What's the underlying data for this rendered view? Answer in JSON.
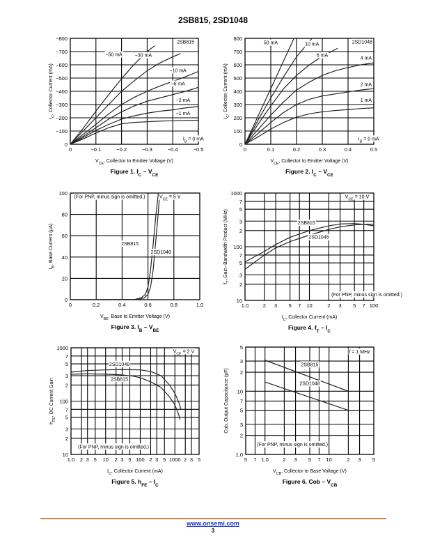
{
  "header": {
    "title": "2SB815, 2SD1048"
  },
  "footer": {
    "link": "www.onsemi.com",
    "page_number": "3",
    "rule_color": "#d4803f"
  },
  "chart_data": [
    {
      "id": "fig1",
      "type": "line",
      "caption": "Figure 1. I_C – V_CE",
      "caption_parts": [
        "Figure 1. I",
        "C",
        " – V",
        "CE"
      ],
      "xlabel_parts": [
        "V",
        "CE",
        ", Collector to Emitter Voltage (V)"
      ],
      "ylabel_parts": [
        "I",
        "C",
        ", Collector Current (mA)"
      ],
      "xscale": "linear",
      "yscale": "linear",
      "xlim": [
        0,
        -0.5
      ],
      "ylim": [
        0,
        -800
      ],
      "xticks": [
        0,
        -0.1,
        -0.2,
        -0.3,
        -0.4,
        -0.5
      ],
      "xtick_labels": [
        "0",
        "−0.1",
        "−0.2",
        "−0.3",
        "−0.4",
        "−0.5"
      ],
      "yticks": [
        0,
        -100,
        -200,
        -300,
        -400,
        -500,
        -600,
        -700,
        -800
      ],
      "ytick_labels": [
        "0",
        "−100",
        "−200",
        "−300",
        "−400",
        "−500",
        "−600",
        "−700",
        "−800"
      ],
      "grid": true,
      "annotations": [
        {
          "text": "2SB815",
          "x": -0.45,
          "y": -760
        },
        {
          "text": "I_B = 0 mA",
          "x": -0.44,
          "y": -30
        }
      ],
      "series": [
        {
          "name": "−50 mA",
          "label_at": [
            -0.17,
            -665
          ],
          "x": [
            0,
            -0.05,
            -0.1,
            -0.15,
            -0.2,
            -0.25,
            -0.3,
            -0.33
          ],
          "y": [
            0,
            -120,
            -250,
            -375,
            -495,
            -605,
            -700,
            -745
          ]
        },
        {
          "name": "−30 mA",
          "label_at": [
            -0.285,
            -660
          ],
          "x": [
            0,
            -0.05,
            -0.1,
            -0.15,
            -0.2,
            -0.25,
            -0.3,
            -0.35,
            -0.4,
            -0.43
          ],
          "y": [
            0,
            -100,
            -200,
            -300,
            -400,
            -480,
            -555,
            -615,
            -660,
            -685
          ]
        },
        {
          "name": "−10 mA",
          "label_at": [
            -0.42,
            -545
          ],
          "x": [
            0,
            -0.05,
            -0.1,
            -0.15,
            -0.2,
            -0.25,
            -0.3,
            -0.35,
            -0.4,
            -0.45,
            -0.5
          ],
          "y": [
            0,
            -75,
            -150,
            -230,
            -300,
            -355,
            -400,
            -440,
            -475,
            -510,
            -550
          ]
        },
        {
          "name": "−6 mA",
          "label_at": [
            -0.42,
            -445
          ],
          "x": [
            0,
            -0.05,
            -0.1,
            -0.15,
            -0.2,
            -0.25,
            -0.3,
            -0.35,
            -0.4,
            -0.45,
            -0.5
          ],
          "y": [
            0,
            -60,
            -125,
            -190,
            -245,
            -290,
            -325,
            -350,
            -375,
            -400,
            -430
          ]
        },
        {
          "name": "−2 mA",
          "label_at": [
            -0.44,
            -320
          ],
          "x": [
            0,
            -0.05,
            -0.1,
            -0.15,
            -0.2,
            -0.25,
            -0.3,
            -0.35,
            -0.4,
            -0.45,
            -0.5
          ],
          "y": [
            0,
            -50,
            -105,
            -150,
            -190,
            -215,
            -235,
            -250,
            -260,
            -275,
            -285
          ]
        },
        {
          "name": "−1 mA",
          "label_at": [
            -0.44,
            -220
          ],
          "x": [
            0,
            -0.05,
            -0.1,
            -0.15,
            -0.2,
            -0.25,
            -0.3,
            -0.35,
            -0.4,
            -0.45,
            -0.5
          ],
          "y": [
            0,
            -40,
            -85,
            -125,
            -155,
            -165,
            -170,
            -175,
            -178,
            -180,
            -182
          ]
        }
      ]
    },
    {
      "id": "fig2",
      "type": "line",
      "caption": "Figure 2. I_C – V_CE",
      "caption_parts": [
        "Figure 2. I",
        "C",
        " – V",
        "CE"
      ],
      "xlabel_parts": [
        "V",
        "CE",
        ", Collector to Emitter Voltage (V)"
      ],
      "ylabel_parts": [
        "I",
        "C",
        ", Collector Current (mA)"
      ],
      "xscale": "linear",
      "yscale": "linear",
      "xlim": [
        0,
        0.5
      ],
      "ylim": [
        0,
        800
      ],
      "xticks": [
        0,
        0.1,
        0.2,
        0.3,
        0.4,
        0.5
      ],
      "xtick_labels": [
        "0",
        "0.1",
        "0.2",
        "0.3",
        "0.4",
        "0.5"
      ],
      "yticks": [
        0,
        100,
        200,
        300,
        400,
        500,
        600,
        700,
        800
      ],
      "ytick_labels": [
        "0",
        "100",
        "200",
        "300",
        "400",
        "500",
        "600",
        "700",
        "800"
      ],
      "grid": true,
      "annotations": [
        {
          "text": "2SD1048",
          "x": 0.455,
          "y": 760
        },
        {
          "text": "I_B = 0 mA",
          "x": 0.44,
          "y": 30
        }
      ],
      "series": [
        {
          "name": "50 mA",
          "label_at": [
            0.1,
            755
          ],
          "x": [
            0,
            0.05,
            0.1,
            0.15,
            0.19
          ],
          "y": [
            0,
            210,
            420,
            630,
            800
          ]
        },
        {
          "name": "10 mA",
          "label_at": [
            0.26,
            745
          ],
          "x": [
            0,
            0.05,
            0.1,
            0.15,
            0.2,
            0.26
          ],
          "y": [
            0,
            180,
            350,
            510,
            660,
            800
          ]
        },
        {
          "name": "6 mA",
          "label_at": [
            0.3,
            660
          ],
          "x": [
            0,
            0.05,
            0.1,
            0.15,
            0.2,
            0.25,
            0.3,
            0.36
          ],
          "y": [
            0,
            150,
            290,
            420,
            520,
            600,
            665,
            725
          ]
        },
        {
          "name": "4 mA",
          "label_at": [
            0.47,
            640
          ],
          "x": [
            0,
            0.05,
            0.1,
            0.15,
            0.2,
            0.25,
            0.3,
            0.35,
            0.4,
            0.45,
            0.5
          ],
          "y": [
            0,
            110,
            220,
            320,
            410,
            470,
            520,
            555,
            580,
            600,
            615
          ]
        },
        {
          "name": "2 mA",
          "label_at": [
            0.47,
            440
          ],
          "x": [
            0,
            0.05,
            0.1,
            0.15,
            0.2,
            0.25,
            0.3,
            0.35,
            0.4,
            0.45,
            0.5
          ],
          "y": [
            0,
            80,
            165,
            240,
            300,
            340,
            365,
            380,
            395,
            410,
            420
          ]
        },
        {
          "name": "1 mA",
          "label_at": [
            0.47,
            320
          ],
          "x": [
            0,
            0.05,
            0.1,
            0.15,
            0.2,
            0.25,
            0.3,
            0.35,
            0.4,
            0.45,
            0.5
          ],
          "y": [
            0,
            55,
            115,
            165,
            205,
            230,
            245,
            255,
            262,
            270,
            275
          ]
        }
      ]
    },
    {
      "id": "fig3",
      "type": "line",
      "caption": "Figure 3. I_B – V_BE",
      "caption_parts": [
        "Figure 3. I",
        "B",
        " – V",
        "BE"
      ],
      "xlabel_parts": [
        "V",
        "BE",
        ", Base to Emitter Voltage (V)"
      ],
      "ylabel_parts": [
        "I",
        "B",
        ", Base Current (μA)"
      ],
      "xscale": "linear",
      "yscale": "linear",
      "xlim": [
        0,
        1.0
      ],
      "ylim": [
        0,
        100
      ],
      "xticks": [
        0,
        0.2,
        0.4,
        0.6,
        0.8,
        1.0
      ],
      "xtick_labels": [
        "0",
        "0.2",
        "0.4",
        "0.6",
        "0.8",
        "1.0"
      ],
      "yticks": [
        0,
        20,
        40,
        60,
        80,
        100
      ],
      "ytick_labels": [
        "0",
        "20",
        "40",
        "60",
        "80",
        "100"
      ],
      "grid": true,
      "annotations": [
        {
          "text": "(For PNP, minus sign is omitted.)",
          "x": 0.03,
          "y": 95
        },
        {
          "text": "V_CE = 5 V",
          "x": 0.77,
          "y": 95
        },
        {
          "text": "2SB815",
          "x": 0.46,
          "y": 51
        },
        {
          "text": "2SD1048",
          "x": 0.7,
          "y": 43
        }
      ],
      "series": [
        {
          "name": "2SB815",
          "x": [
            0,
            0.5,
            0.55,
            0.58,
            0.6,
            0.62,
            0.64,
            0.66,
            0.68
          ],
          "y": [
            0,
            0.3,
            2,
            5,
            12,
            28,
            52,
            78,
            100
          ]
        },
        {
          "name": "2SD1048",
          "x": [
            0,
            0.52,
            0.57,
            0.6,
            0.62,
            0.64,
            0.66,
            0.68,
            0.69
          ],
          "y": [
            0,
            0.2,
            1.5,
            5,
            12,
            28,
            55,
            82,
            100
          ]
        }
      ]
    },
    {
      "id": "fig4",
      "type": "line",
      "caption": "Figure 4. f_T – I_C",
      "caption_parts": [
        "Figure 4. f",
        "T",
        " – I",
        "C"
      ],
      "xlabel_parts": [
        "I",
        "C",
        ", Collector Current (mA)"
      ],
      "ylabel_parts": [
        "f",
        "T",
        ", Gain−Bandwidth Product (MHz)"
      ],
      "xscale": "log",
      "yscale": "log",
      "xlim": [
        1,
        100
      ],
      "ylim": [
        10,
        1000
      ],
      "xticks": [
        1,
        2,
        3,
        5,
        7,
        10,
        20,
        30,
        50,
        70,
        100
      ],
      "xtick_labels": [
        "1.0",
        "2",
        "3",
        "5",
        "7",
        "10",
        "2",
        "3",
        "5",
        "7",
        "100"
      ],
      "yticks": [
        10,
        20,
        30,
        50,
        70,
        100,
        200,
        300,
        500,
        700,
        1000
      ],
      "ytick_labels": [
        "10",
        "2",
        "3",
        "5",
        "7",
        "100",
        "2",
        "3",
        "5",
        "7",
        "1000"
      ],
      "grid": true,
      "annotations": [
        {
          "text": "V_CE = 10 V",
          "x": 55,
          "y": 800
        },
        {
          "text": "(For PNP, minus sign is omitted.)",
          "x": 22,
          "y": 12
        },
        {
          "text": "2SB815",
          "x": 9,
          "y": 260
        },
        {
          "text": "2SD1048",
          "x": 14,
          "y": 140
        }
      ],
      "series": [
        {
          "name": "2SB815",
          "x": [
            1,
            2,
            3,
            5,
            10,
            20,
            30,
            50,
            70,
            100
          ],
          "y": [
            52,
            82,
            110,
            150,
            200,
            245,
            265,
            270,
            262,
            245
          ]
        },
        {
          "name": "2SD1048",
          "x": [
            1,
            2,
            3,
            5,
            10,
            20,
            30,
            50,
            70,
            100
          ],
          "y": [
            38,
            70,
            95,
            125,
            165,
            210,
            235,
            255,
            262,
            262
          ]
        }
      ]
    },
    {
      "id": "fig5",
      "type": "line",
      "caption": "Figure 5. h_FE – I_C",
      "caption_parts": [
        "Figure 5. h",
        "FE",
        " – I",
        "C"
      ],
      "xlabel_parts": [
        "I",
        "C",
        ", Collector Current (mA)"
      ],
      "ylabel_parts": [
        "h",
        "FE",
        ", DC Current Gain"
      ],
      "xscale": "log",
      "yscale": "log",
      "xlim": [
        1,
        5000
      ],
      "ylim": [
        10,
        1000
      ],
      "xticks": [
        1,
        2,
        3,
        5,
        10,
        20,
        30,
        50,
        100,
        200,
        300,
        500,
        1000,
        2000,
        3000,
        5000
      ],
      "xtick_labels": [
        "1.0",
        "2",
        "3",
        "5",
        "10",
        "2",
        "3",
        "5",
        "100",
        "2",
        "3",
        "5",
        "1000",
        "2",
        "3",
        "5"
      ],
      "yticks": [
        10,
        20,
        30,
        50,
        70,
        100,
        200,
        300,
        500,
        700,
        1000
      ],
      "ytick_labels": [
        "10",
        "2",
        "3",
        "5",
        "7",
        "100",
        "2",
        "3",
        "5",
        "7",
        "1000"
      ],
      "grid": true,
      "annotations": [
        {
          "text": "V_CE = 2 V",
          "x": 1800,
          "y": 800
        },
        {
          "text": "(For PNP, minus sign is omitted.)",
          "x": 1.6,
          "y": 13
        },
        {
          "text": "2SD1048",
          "x": 25,
          "y": 460
        },
        {
          "text": "2SB815",
          "x": 25,
          "y": 240
        }
      ],
      "series": [
        {
          "name": "2SD1048",
          "x": [
            1,
            3,
            10,
            30,
            100,
            200,
            400,
            700,
            1000,
            1300,
            1500
          ],
          "y": [
            350,
            375,
            385,
            390,
            385,
            360,
            300,
            200,
            140,
            95,
            70
          ]
        },
        {
          "name": "2SB815",
          "x": [
            1,
            3,
            10,
            30,
            60,
            100,
            200,
            400,
            700,
            1000,
            1300,
            1400
          ],
          "y": [
            320,
            325,
            320,
            310,
            295,
            275,
            230,
            180,
            120,
            85,
            55,
            45
          ]
        }
      ]
    },
    {
      "id": "fig6",
      "type": "line",
      "caption": "Figure 6. Cob – V_CB",
      "caption_parts": [
        "Figure 6. Cob – V",
        "CB"
      ],
      "xlabel_parts": [
        "V",
        "CB",
        ", Collector to Base Voltage (V)"
      ],
      "ylabel_parts": [
        "Cob, Output Capacitance (pF)",
        "",
        ""
      ],
      "xscale": "log",
      "yscale": "log",
      "xlim": [
        0.5,
        50
      ],
      "ylim": [
        1,
        50
      ],
      "xticks": [
        0.5,
        0.7,
        1,
        2,
        3,
        5,
        7,
        10,
        20,
        30,
        50
      ],
      "xtick_labels": [
        "5",
        "7",
        "1.0",
        "2",
        "3",
        "5",
        "7",
        "10",
        "2",
        "3",
        "5"
      ],
      "yticks": [
        1,
        2,
        3,
        5,
        7,
        10,
        20,
        30,
        50
      ],
      "ytick_labels": [
        "1.0",
        "2",
        "3",
        "5",
        "7",
        "10",
        "2",
        "3",
        "5"
      ],
      "grid": true,
      "annotations": [
        {
          "text": "f = 1 MHz",
          "x": 30,
          "y": 40
        },
        {
          "text": "(For PNP, minus sign is omitted.)",
          "x": 0.75,
          "y": 1.35
        },
        {
          "text": "2SB815",
          "x": 5,
          "y": 25
        },
        {
          "text": "2SD1048",
          "x": 5,
          "y": 12.5
        }
      ],
      "series": [
        {
          "name": "2SB815",
          "x": [
            1,
            20
          ],
          "y": [
            31,
            10
          ]
        },
        {
          "name": "2SD1048",
          "x": [
            1,
            20
          ],
          "y": [
            14,
            5
          ]
        }
      ]
    }
  ]
}
